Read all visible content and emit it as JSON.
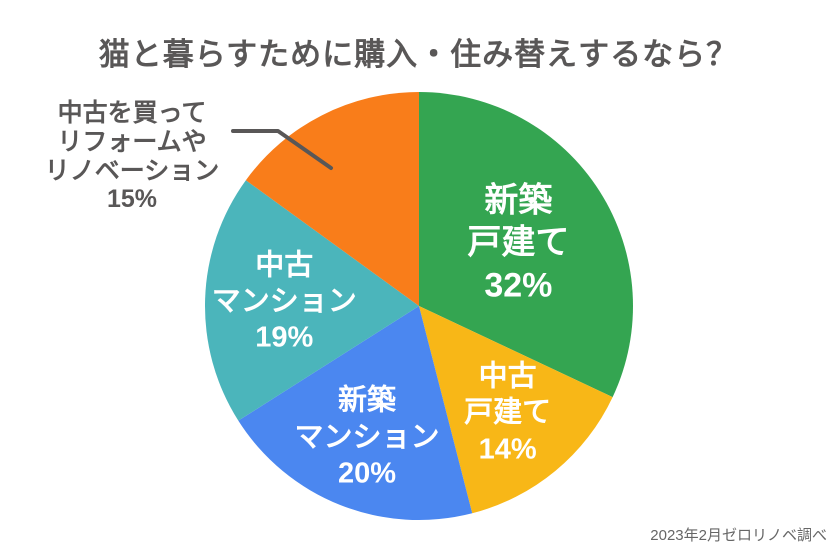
{
  "title": "猫と暮らすために購入・住み替えするなら？",
  "caption": "2023年2月ゼロリノベ調べ",
  "annotation": {
    "lines": [
      "中古を買って",
      "リフォームや",
      "リノベーション",
      "15%"
    ]
  },
  "colors": {
    "background": "#ffffff",
    "heading_gray": "#595757",
    "caption_gray": "#666666",
    "slice_label_white": "#ffffff"
  },
  "chart_data": {
    "type": "pie",
    "title": "猫と暮らすために購入・住み替えするなら？",
    "start_angle_deg": 0,
    "direction": "clockwise",
    "legend_position": "none",
    "source": "2023年2月ゼロリノベ調べ",
    "slices": [
      {
        "label": "新築戸建て",
        "value": 32,
        "color": "#34a551",
        "lines": [
          "新築",
          "戸建て",
          "32%"
        ]
      },
      {
        "label": "中古戸建て",
        "value": 14,
        "color": "#f8b717",
        "lines": [
          "中古",
          "戸建て",
          "14%"
        ]
      },
      {
        "label": "新築マンション",
        "value": 20,
        "color": "#4b87f0",
        "lines": [
          "新築",
          "マンション",
          "20%"
        ]
      },
      {
        "label": "中古マンション",
        "value": 19,
        "color": "#4bb5bb",
        "lines": [
          "中古",
          "マンション",
          "19%"
        ]
      },
      {
        "label": "中古を買ってリフォームやリノベーション",
        "value": 15,
        "color": "#f97d1a",
        "lines": []
      }
    ]
  }
}
